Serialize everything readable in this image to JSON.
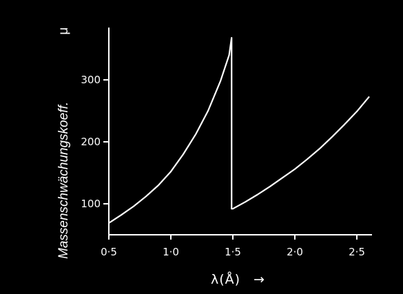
{
  "chart_data": {
    "type": "line",
    "title": "",
    "ylabel": "Massenschwächungskoeff.",
    "yunit": "μ",
    "xlabel": "λ(Å)",
    "xlabel_arrow": "→",
    "xlim": [
      0.5,
      2.6
    ],
    "ylim": [
      50,
      385
    ],
    "xticks": [
      0.5,
      1.0,
      1.5,
      2.0,
      2.5
    ],
    "xtick_labels": [
      "0·5",
      "1·0",
      "1·5",
      "2·0",
      "2·5"
    ],
    "yticks": [
      100,
      200,
      300
    ],
    "ytick_labels": [
      "100",
      "200",
      "300"
    ],
    "grid": false,
    "background": "#000000",
    "line_color": "#ffffff",
    "series": [
      {
        "x": [
          0.5,
          0.6,
          0.7,
          0.8,
          0.9,
          1.0,
          1.1,
          1.2,
          1.3,
          1.4,
          1.47,
          1.49,
          1.49,
          1.5,
          1.6,
          1.7,
          1.8,
          1.9,
          2.0,
          2.1,
          2.2,
          2.3,
          2.4,
          2.5,
          2.6
        ],
        "y": [
          69,
          82,
          96,
          112,
          130,
          152,
          180,
          212,
          250,
          298,
          340,
          368,
          92,
          92,
          103,
          115,
          128,
          142,
          156,
          172,
          189,
          208,
          228,
          249,
          273
        ]
      }
    ]
  }
}
